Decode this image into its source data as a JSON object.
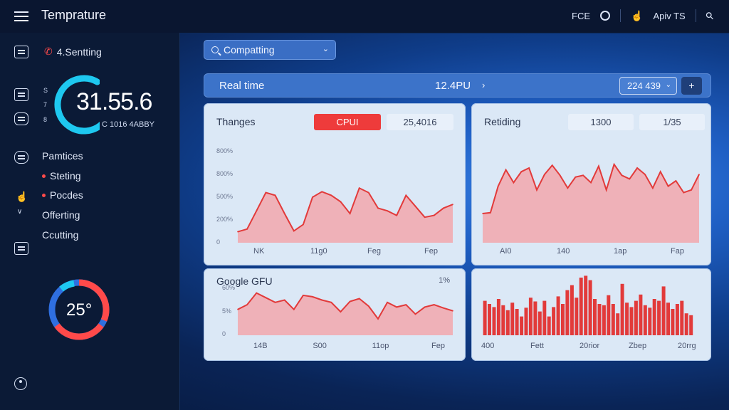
{
  "app": {
    "title": "Temprature"
  },
  "topbar": {
    "item1": "FCE",
    "item2": "Apiv TS"
  },
  "sidebar": {
    "header_label": "4.Sentting",
    "gauge": {
      "value": "31.55.6",
      "sub": "C 1016 4ABBY",
      "tick1": "S",
      "tick2": "7",
      "tick3": "8",
      "level": 0.72
    },
    "items": [
      {
        "label": "Pamtices"
      },
      {
        "label": "Steting"
      },
      {
        "label": "Pocdes"
      },
      {
        "label": "Offerting"
      },
      {
        "label": "Ccutting"
      }
    ],
    "small_mark": "∨",
    "temp_donut": {
      "value": "25°"
    },
    "colors": {
      "accent": "#1ec8f0",
      "red": "#ff4a4a",
      "blue": "#2f6fe0"
    }
  },
  "search": {
    "value": "Compatting"
  },
  "realtime": {
    "label": "Real time",
    "value": "12.4PU",
    "select_value": "224 439",
    "plus_label": "+"
  },
  "cards": {
    "changes": {
      "title": "Thanges",
      "pill_red": "CPUI",
      "pill_light": "25,4016"
    },
    "retiding": {
      "title": "Retiding",
      "pill1": "1300",
      "pill2": "1/35"
    },
    "google": {
      "title": "Google GFU",
      "corner": "1%"
    },
    "bars": {
      "title": ""
    }
  },
  "chart_data": [
    {
      "type": "area",
      "name": "changes",
      "y_ticks": [
        "800%",
        "800%",
        "500%",
        "200%",
        "0"
      ],
      "x_ticks": [
        "NK",
        "11g0",
        "Feg",
        "Fep"
      ],
      "ylim": [
        0,
        100
      ],
      "values": [
        12,
        15,
        35,
        55,
        52,
        32,
        13,
        20,
        50,
        56,
        52,
        45,
        32,
        60,
        55,
        38,
        35,
        30,
        52,
        40,
        28,
        30,
        38,
        42
      ],
      "color": "#e23a3a"
    },
    {
      "type": "area",
      "name": "retiding",
      "y_ticks": [],
      "x_ticks": [
        "AI0",
        "140",
        "1ap",
        "Fap"
      ],
      "ylim": [
        0,
        100
      ],
      "values": [
        32,
        33,
        62,
        80,
        66,
        78,
        82,
        58,
        75,
        85,
        74,
        60,
        72,
        74,
        66,
        84,
        58,
        86,
        74,
        70,
        82,
        75,
        60,
        78,
        62,
        68,
        55,
        58,
        75
      ],
      "color": "#e23a3a"
    },
    {
      "type": "area",
      "name": "google",
      "y_ticks": [
        "60%",
        "5%",
        "0"
      ],
      "x_ticks": [
        "14B",
        "S00",
        "11op",
        "Fep"
      ],
      "ylim": [
        0,
        100
      ],
      "values": [
        55,
        65,
        90,
        80,
        70,
        75,
        55,
        85,
        82,
        75,
        70,
        50,
        72,
        78,
        62,
        35,
        70,
        60,
        65,
        45,
        60,
        65,
        58,
        52
      ],
      "color": "#e23a3a"
    },
    {
      "type": "bar",
      "name": "bars",
      "x_ticks": [
        "400",
        "Fett",
        "20rior",
        "Zbep",
        "20rrg"
      ],
      "ylim": [
        0,
        100
      ],
      "values": [
        55,
        50,
        45,
        58,
        48,
        40,
        52,
        42,
        30,
        44,
        60,
        54,
        38,
        55,
        30,
        45,
        62,
        50,
        72,
        80,
        60,
        92,
        95,
        88,
        58,
        50,
        48,
        64,
        50,
        35,
        82,
        52,
        45,
        55,
        65,
        48,
        44,
        58,
        55,
        78,
        52,
        42,
        50,
        55,
        35,
        32
      ],
      "color": "#e23a3a"
    }
  ]
}
